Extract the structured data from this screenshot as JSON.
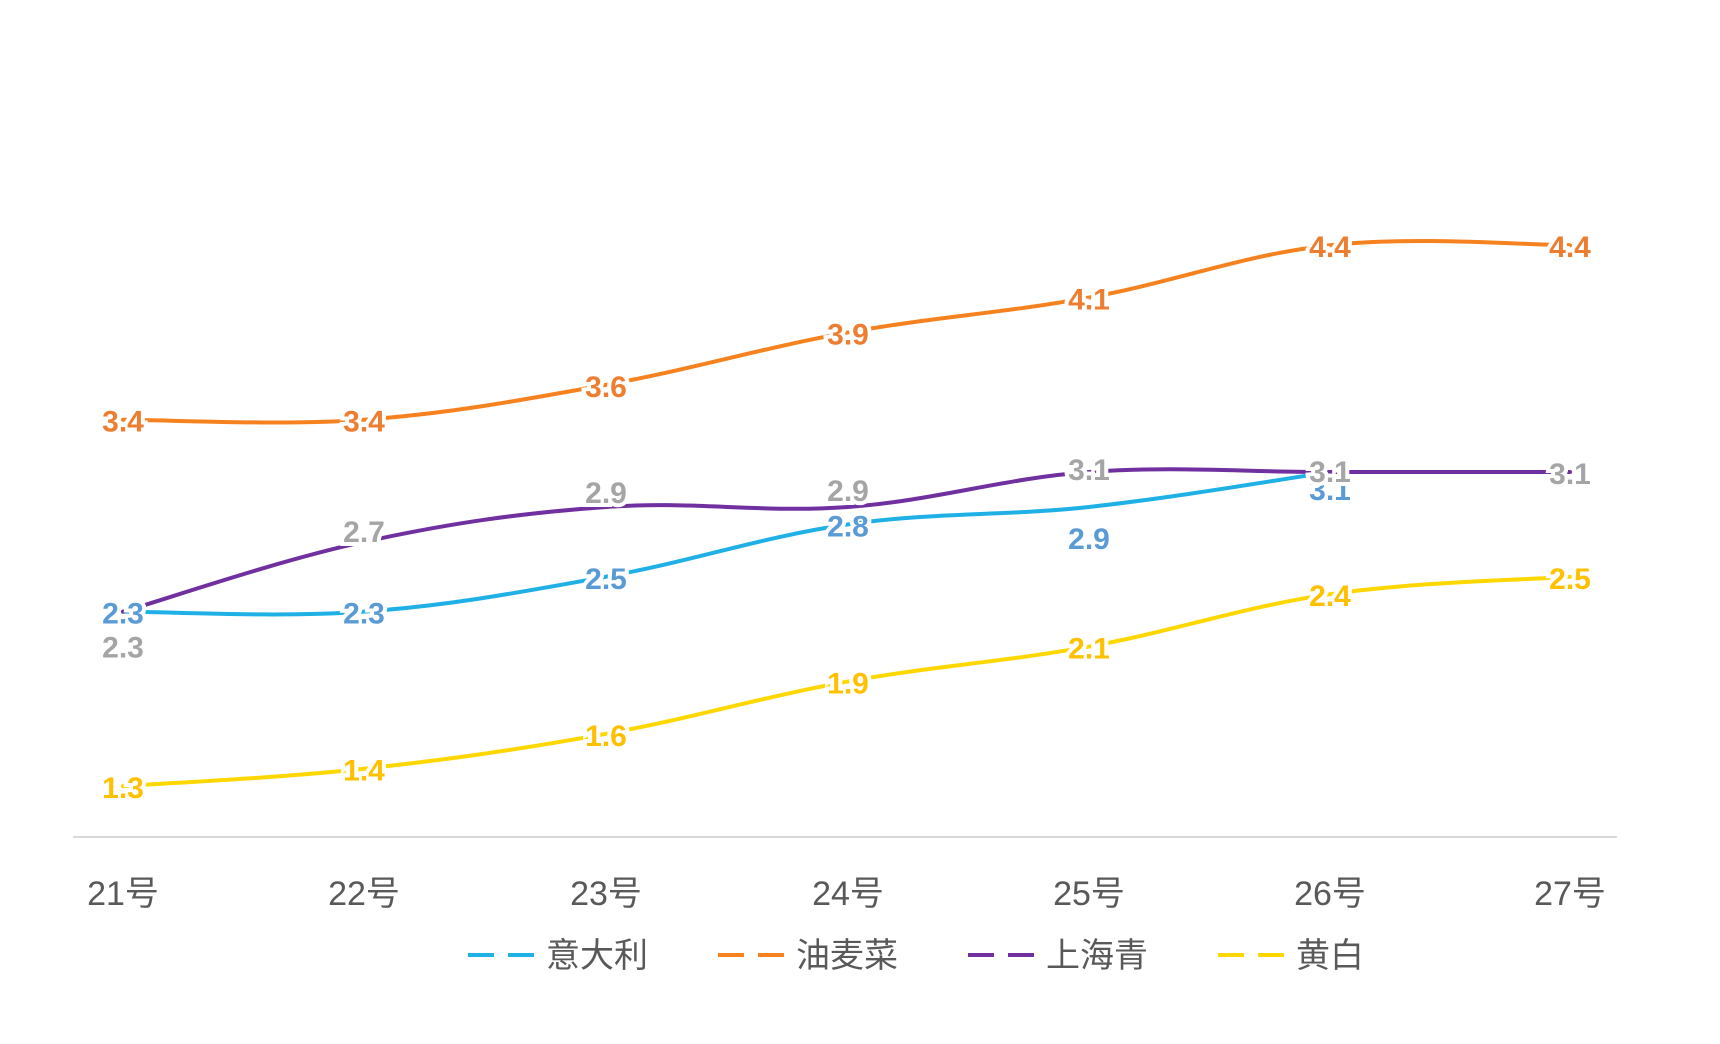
{
  "chart_data": {
    "type": "line",
    "categories": [
      "21号",
      "22号",
      "23号",
      "24号",
      "25号",
      "26号",
      "27号"
    ],
    "series": [
      {
        "name": "意大利",
        "color": "#1FB0E6",
        "label_color": "#5B9BD5",
        "values": [
          2.3,
          2.3,
          2.5,
          2.8,
          2.9,
          3.1,
          null
        ]
      },
      {
        "name": "油麦菜",
        "color": "#F5821F",
        "label_color": "#ED7D31",
        "values": [
          3.4,
          3.4,
          3.6,
          3.9,
          4.1,
          4.4,
          4.4
        ]
      },
      {
        "name": "上海青",
        "color": "#7030A0",
        "label_color": "#A5A5A5",
        "values": [
          2.3,
          2.7,
          2.9,
          2.9,
          3.1,
          3.1,
          3.1
        ]
      },
      {
        "name": "黄白",
        "color": "#FFD700",
        "label_color": "#FFC000",
        "values": [
          1.3,
          1.4,
          1.6,
          1.9,
          2.1,
          2.4,
          2.5
        ]
      }
    ],
    "title": "",
    "xlabel": "",
    "ylabel": "",
    "ylim": [
      0,
      5
    ],
    "grid": false,
    "legend_position": "bottom",
    "axis_color": "#D9D9D9"
  }
}
